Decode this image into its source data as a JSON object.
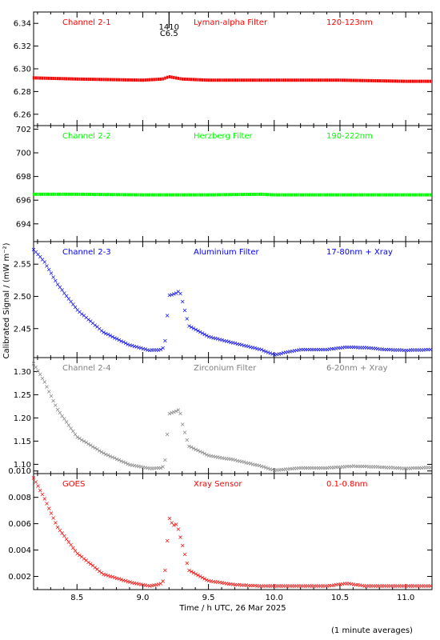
{
  "figure": {
    "xlabel": "Time / h UTC, 26 Mar 2025",
    "ylabel": "Calibrated Signal / (mW m⁻²)",
    "footnote": "(1 minute averages)",
    "xlim": [
      8.17,
      11.2
    ],
    "xticks": [
      8.5,
      9.0,
      9.5,
      10.0,
      10.5,
      11.0
    ],
    "xtick_labels": [
      "8.5",
      "9.0",
      "9.5",
      "10.0",
      "10.5",
      "11.0"
    ],
    "event_marker": {
      "x": 9.2,
      "time_label": "1410",
      "class_label": "C6.5",
      "color": "#000000"
    }
  },
  "chart_data": [
    {
      "type": "scatter",
      "title": "Channel 2-1",
      "filter": "Lyman-alpha Filter",
      "band": "120-123nm",
      "color": "#ff0000",
      "ylim": [
        6.25,
        6.35
      ],
      "yticks": [
        6.26,
        6.28,
        6.3,
        6.32,
        6.34
      ],
      "ytick_labels": [
        "6.26",
        "6.28",
        "6.30",
        "6.32",
        "6.34"
      ],
      "x": [
        8.17,
        8.5,
        9.0,
        9.15,
        9.2,
        9.3,
        9.5,
        10.0,
        10.5,
        11.0,
        11.2
      ],
      "y": [
        6.292,
        6.291,
        6.29,
        6.291,
        6.293,
        6.291,
        6.29,
        6.29,
        6.29,
        6.289,
        6.289
      ]
    },
    {
      "type": "scatter",
      "title": "Channel 2-2",
      "filter": "Herzberg Filter",
      "band": "190-222nm",
      "color": "#00ff00",
      "ylim": [
        692.5,
        702.3
      ],
      "yticks": [
        694,
        696,
        698,
        700,
        702
      ],
      "ytick_labels": [
        "694",
        "696",
        "698",
        "700",
        "702"
      ],
      "x": [
        8.17,
        8.5,
        9.0,
        9.5,
        9.9,
        10.0,
        10.5,
        11.0,
        11.2
      ],
      "y": [
        696.5,
        696.5,
        696.45,
        696.45,
        696.5,
        696.45,
        696.45,
        696.45,
        696.45
      ]
    },
    {
      "type": "scatter",
      "title": "Channel 2-3",
      "filter": "Aluminium Filter",
      "band": "17-80nm + Xray",
      "color": "#0000ff",
      "ylim": [
        2.405,
        2.585
      ],
      "yticks": [
        2.45,
        2.5,
        2.55
      ],
      "ytick_labels": [
        "2.45",
        "2.50",
        "2.55"
      ],
      "x": [
        8.17,
        8.25,
        8.35,
        8.5,
        8.7,
        8.9,
        9.05,
        9.15,
        9.17,
        9.2,
        9.25,
        9.28,
        9.3,
        9.35,
        9.5,
        9.7,
        9.9,
        10.0,
        10.2,
        10.4,
        10.55,
        10.7,
        10.85,
        11.0,
        11.2
      ],
      "y": [
        2.573,
        2.555,
        2.52,
        2.48,
        2.445,
        2.425,
        2.417,
        2.418,
        2.432,
        2.502,
        2.505,
        2.51,
        2.495,
        2.455,
        2.438,
        2.428,
        2.418,
        2.41,
        2.418,
        2.418,
        2.422,
        2.421,
        2.418,
        2.417,
        2.418
      ]
    },
    {
      "type": "scatter",
      "title": "Channel 2-4",
      "filter": "Zirconium Filter",
      "band": "6-20nm + Xray",
      "color": "#808080",
      "ylim": [
        1.08,
        1.33
      ],
      "yticks": [
        1.1,
        1.15,
        1.2,
        1.25,
        1.3
      ],
      "ytick_labels": [
        "1.10",
        "1.15",
        "1.20",
        "1.25",
        "1.30"
      ],
      "x": [
        8.17,
        8.25,
        8.35,
        8.5,
        8.7,
        8.9,
        9.05,
        9.15,
        9.17,
        9.2,
        9.25,
        9.28,
        9.3,
        9.35,
        9.5,
        9.7,
        9.9,
        10.0,
        10.2,
        10.4,
        10.6,
        10.8,
        11.0,
        11.2
      ],
      "y": [
        1.318,
        1.28,
        1.22,
        1.16,
        1.125,
        1.1,
        1.092,
        1.093,
        1.11,
        1.21,
        1.215,
        1.22,
        1.19,
        1.14,
        1.12,
        1.11,
        1.097,
        1.088,
        1.093,
        1.093,
        1.097,
        1.095,
        1.092,
        1.094
      ]
    },
    {
      "type": "scatter",
      "title": "GOES",
      "filter": "Xray Sensor",
      "band": "0.1-0.8nm",
      "color": "#ff0000",
      "ylim": [
        0.001,
        0.0098
      ],
      "yticks": [
        0.002,
        0.004,
        0.006,
        0.008,
        0.01
      ],
      "ytick_labels": [
        "0.002",
        "0.004",
        "0.006",
        "0.008",
        "0.010"
      ],
      "x": [
        8.17,
        8.25,
        8.35,
        8.5,
        8.7,
        8.9,
        9.05,
        9.15,
        9.17,
        9.2,
        9.23,
        9.26,
        9.3,
        9.35,
        9.5,
        9.7,
        9.9,
        10.0,
        10.2,
        10.4,
        10.55,
        10.7,
        10.9,
        11.0,
        11.2
      ],
      "y": [
        0.0095,
        0.008,
        0.0058,
        0.0038,
        0.0022,
        0.0016,
        0.0013,
        0.0015,
        0.0025,
        0.0065,
        0.0059,
        0.006,
        0.0045,
        0.0025,
        0.0017,
        0.0014,
        0.0013,
        0.0013,
        0.0013,
        0.0013,
        0.0015,
        0.0013,
        0.0013,
        0.0013,
        0.0013
      ]
    }
  ]
}
